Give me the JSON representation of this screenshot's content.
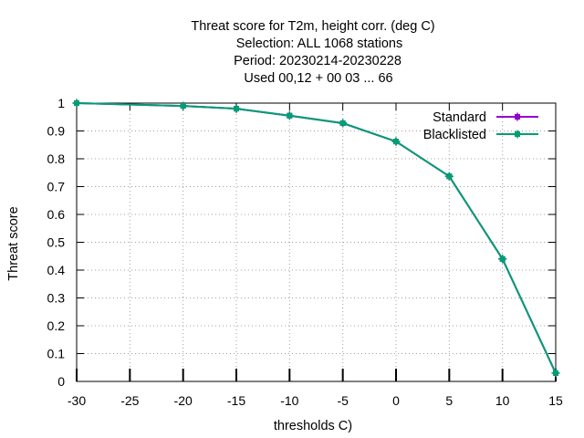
{
  "chart_data": {
    "type": "line",
    "title_lines": [
      "Threat score  for T2m, height corr. (deg C)",
      "Selection: ALL   1068 stations",
      "Period: 20230214-20230228",
      "Used  00,12  + 00 03 ... 66"
    ],
    "xlabel": "thresholds C)",
    "ylabel": "Threat score",
    "xlim": [
      -30,
      15
    ],
    "ylim": [
      0,
      1
    ],
    "xticks": [
      -30,
      -25,
      -20,
      -15,
      -10,
      -5,
      0,
      5,
      10,
      15
    ],
    "yticks": [
      0,
      0.1,
      0.2,
      0.3,
      0.4,
      0.5,
      0.6,
      0.7,
      0.8,
      0.9,
      1
    ],
    "grid": true,
    "legend_position": "top-right",
    "series": [
      {
        "name": "Standard",
        "color": "#9400d3",
        "marker": "square-cross",
        "x": [
          -30,
          -20,
          -15,
          -10,
          -5,
          0,
          5,
          10,
          15
        ],
        "y": [
          1.0,
          0.99,
          0.98,
          0.955,
          0.928,
          0.862,
          0.737,
          0.44,
          0.03
        ]
      },
      {
        "name": "Blacklisted",
        "color": "#009e73",
        "marker": "square-cross",
        "x": [
          -30,
          -20,
          -15,
          -10,
          -5,
          0,
          5,
          10,
          15
        ],
        "y": [
          1.0,
          0.99,
          0.98,
          0.955,
          0.928,
          0.862,
          0.737,
          0.44,
          0.03
        ]
      }
    ]
  }
}
